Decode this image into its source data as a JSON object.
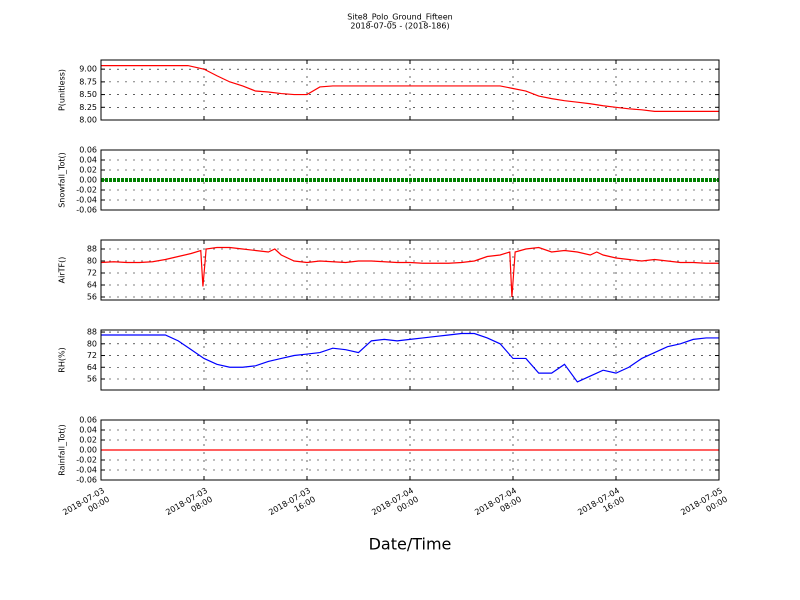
{
  "chart_data": [
    {
      "type": "line",
      "title": "Site8_Polo_Ground_Fifteen",
      "subtitle": "2018-07-05 - (2018-186)",
      "ylabel": "P(unitless)",
      "color": "#ff0000",
      "x": [
        "2018-07-03 00:00",
        "2018-07-03 01:00",
        "2018-07-03 02:00",
        "2018-07-03 03:00",
        "2018-07-03 04:00",
        "2018-07-03 05:00",
        "2018-07-03 06:00",
        "2018-07-03 06:45",
        "2018-07-03 08:00",
        "2018-07-03 09:00",
        "2018-07-03 10:00",
        "2018-07-03 11:00",
        "2018-07-03 12:00",
        "2018-07-03 13:00",
        "2018-07-03 14:00",
        "2018-07-03 15:00",
        "2018-07-03 16:00",
        "2018-07-03 17:00",
        "2018-07-03 18:00",
        "2018-07-04 07:00",
        "2018-07-04 08:00",
        "2018-07-04 09:00",
        "2018-07-04 10:00",
        "2018-07-04 11:00",
        "2018-07-04 12:00",
        "2018-07-04 13:00",
        "2018-07-04 14:00",
        "2018-07-04 15:00",
        "2018-07-04 16:00",
        "2018-07-04 17:00",
        "2018-07-04 18:00",
        "2018-07-04 19:00",
        "2018-07-05 00:00"
      ],
      "values": [
        9.07,
        9.07,
        9.07,
        9.07,
        9.07,
        9.07,
        9.07,
        9.07,
        9.0,
        8.87,
        8.75,
        8.67,
        8.57,
        8.55,
        8.52,
        8.5,
        8.5,
        8.65,
        8.67,
        8.67,
        8.62,
        8.57,
        8.47,
        8.42,
        8.38,
        8.35,
        8.32,
        8.28,
        8.25,
        8.22,
        8.2,
        8.17,
        8.17
      ],
      "xlim": [
        "2018-07-03 00:00",
        "2018-07-05 00:00"
      ],
      "ylim": [
        8.0,
        9.18
      ],
      "yticks": [
        {
          "value": 8.0,
          "label": "8.00"
        },
        {
          "value": 8.25,
          "label": "8.25"
        },
        {
          "value": 8.5,
          "label": "8.50"
        },
        {
          "value": 8.75,
          "label": "8.75"
        },
        {
          "value": 9.0,
          "label": "9.00"
        }
      ],
      "grid": true
    },
    {
      "type": "line",
      "ylabel": "Snowfall_Tot()",
      "color": "#008000",
      "marker": "dots",
      "x": [
        "2018-07-03 00:00",
        "2018-07-05 00:00"
      ],
      "values": [
        0,
        0
      ],
      "xlim": [
        "2018-07-03 00:00",
        "2018-07-05 00:00"
      ],
      "ylim": [
        -0.06,
        0.06
      ],
      "yticks": [
        -0.06,
        -0.04,
        -0.02,
        {
          "value": 0,
          "label": "0.00"
        },
        0.02,
        0.04,
        0.06
      ],
      "grid": true
    },
    {
      "type": "line",
      "ylabel": "AirTF()",
      "color": "#ff0000",
      "x": [
        "2018-07-03 00:00",
        "2018-07-03 01:00",
        "2018-07-03 02:00",
        "2018-07-03 03:00",
        "2018-07-03 04:00",
        "2018-07-03 05:00",
        "2018-07-03 06:00",
        "2018-07-03 07:00",
        "2018-07-03 07:45",
        "2018-07-03 07:55",
        "2018-07-03 08:10",
        "2018-07-03 09:00",
        "2018-07-03 10:00",
        "2018-07-03 11:00",
        "2018-07-03 12:00",
        "2018-07-03 13:00",
        "2018-07-03 13:30",
        "2018-07-03 14:00",
        "2018-07-03 15:00",
        "2018-07-03 16:00",
        "2018-07-03 17:00",
        "2018-07-03 18:00",
        "2018-07-03 19:00",
        "2018-07-03 20:00",
        "2018-07-03 21:00",
        "2018-07-03 22:00",
        "2018-07-03 23:00",
        "2018-07-04 00:00",
        "2018-07-04 01:00",
        "2018-07-04 02:00",
        "2018-07-04 03:00",
        "2018-07-04 04:00",
        "2018-07-04 05:00",
        "2018-07-04 06:00",
        "2018-07-04 07:00",
        "2018-07-04 07:45",
        "2018-07-04 07:55",
        "2018-07-04 08:10",
        "2018-07-04 09:00",
        "2018-07-04 10:00",
        "2018-07-04 11:00",
        "2018-07-04 12:00",
        "2018-07-04 13:00",
        "2018-07-04 14:00",
        "2018-07-04 14:30",
        "2018-07-04 15:00",
        "2018-07-04 16:00",
        "2018-07-04 17:00",
        "2018-07-04 18:00",
        "2018-07-04 19:00",
        "2018-07-04 20:00",
        "2018-07-04 21:00",
        "2018-07-04 22:00",
        "2018-07-04 23:00",
        "2018-07-05 00:00"
      ],
      "values": [
        79,
        79.5,
        79,
        79,
        79.5,
        81,
        83,
        85,
        87,
        63,
        88,
        89,
        89,
        88,
        87,
        86,
        88,
        84,
        80,
        79,
        80,
        79.5,
        79,
        80,
        80,
        79.5,
        79,
        79,
        78.5,
        78.5,
        78.5,
        79,
        80,
        83,
        84,
        86,
        56,
        86,
        88,
        89,
        86,
        87,
        86,
        84,
        86,
        84,
        82,
        81,
        80,
        81,
        80,
        79,
        79,
        78.5,
        78.5
      ],
      "xlim": [
        "2018-07-03 00:00",
        "2018-07-05 00:00"
      ],
      "ylim": [
        54,
        94
      ],
      "yticks": [
        56,
        64,
        72,
        80,
        88
      ],
      "grid": true
    },
    {
      "type": "line",
      "ylabel": "RH(%)",
      "color": "#0000ff",
      "x": [
        "2018-07-03 00:00",
        "2018-07-03 01:00",
        "2018-07-03 02:00",
        "2018-07-03 03:00",
        "2018-07-03 04:00",
        "2018-07-03 05:00",
        "2018-07-03 06:00",
        "2018-07-03 07:00",
        "2018-07-03 08:00",
        "2018-07-03 09:00",
        "2018-07-03 10:00",
        "2018-07-03 11:00",
        "2018-07-03 12:00",
        "2018-07-03 13:00",
        "2018-07-03 14:00",
        "2018-07-03 15:00",
        "2018-07-03 16:00",
        "2018-07-03 17:00",
        "2018-07-03 18:00",
        "2018-07-03 19:00",
        "2018-07-03 20:00",
        "2018-07-03 21:00",
        "2018-07-03 22:00",
        "2018-07-03 23:00",
        "2018-07-04 00:00",
        "2018-07-04 01:00",
        "2018-07-04 02:00",
        "2018-07-04 03:00",
        "2018-07-04 04:00",
        "2018-07-04 05:00",
        "2018-07-04 06:00",
        "2018-07-04 07:00",
        "2018-07-04 08:00",
        "2018-07-04 09:00",
        "2018-07-04 10:00",
        "2018-07-04 11:00",
        "2018-07-04 12:00",
        "2018-07-04 13:00",
        "2018-07-04 14:00",
        "2018-07-04 15:00",
        "2018-07-04 16:00",
        "2018-07-04 17:00",
        "2018-07-04 18:00",
        "2018-07-04 19:00",
        "2018-07-04 20:00",
        "2018-07-04 21:00",
        "2018-07-04 22:00",
        "2018-07-04 23:00",
        "2018-07-05 00:00"
      ],
      "values": [
        86,
        86,
        86,
        86,
        86,
        86,
        82,
        76,
        70,
        66,
        64,
        64,
        65,
        68,
        70,
        72,
        73,
        74,
        77,
        76,
        74,
        82,
        83,
        82,
        83,
        84,
        85,
        86,
        87,
        87,
        84,
        80,
        70,
        70,
        60,
        60,
        66,
        54,
        58,
        62,
        60,
        64,
        70,
        74,
        78,
        80,
        83,
        84,
        84
      ],
      "xlim": [
        "2018-07-03 00:00",
        "2018-07-05 00:00"
      ],
      "ylim": [
        48.5,
        89.4
      ],
      "yticks": [
        56,
        64,
        72,
        80,
        88
      ],
      "grid": true
    },
    {
      "type": "line",
      "ylabel": "Rainfall_Tot()",
      "xlabel": "Date/Time",
      "color": "#ff0000",
      "x": [
        "2018-07-03 00:00",
        "2018-07-05 00:00"
      ],
      "values": [
        0,
        0
      ],
      "xlim": [
        "2018-07-03 00:00",
        "2018-07-05 00:00"
      ],
      "ylim": [
        -0.06,
        0.06
      ],
      "yticks": [
        -0.06,
        -0.04,
        -0.02,
        {
          "value": 0,
          "label": "0.00"
        },
        0.02,
        0.04,
        0.06
      ],
      "xticks": [
        {
          "value": "2018-07-03 00:00",
          "label": "2018-07-03\n00:00"
        },
        {
          "value": "2018-07-03 08:00",
          "label": "2018-07-03\n08:00"
        },
        {
          "value": "2018-07-03 16:00",
          "label": "2018-07-03\n16:00"
        },
        {
          "value": "2018-07-04 00:00",
          "label": "2018-07-04\n00:00"
        },
        {
          "value": "2018-07-04 08:00",
          "label": "2018-07-04\n08:00"
        },
        {
          "value": "2018-07-04 16:00",
          "label": "2018-07-04\n16:00"
        },
        {
          "value": "2018-07-05 00:00",
          "label": "2018-07-05\n00:00"
        }
      ],
      "grid": true
    }
  ]
}
